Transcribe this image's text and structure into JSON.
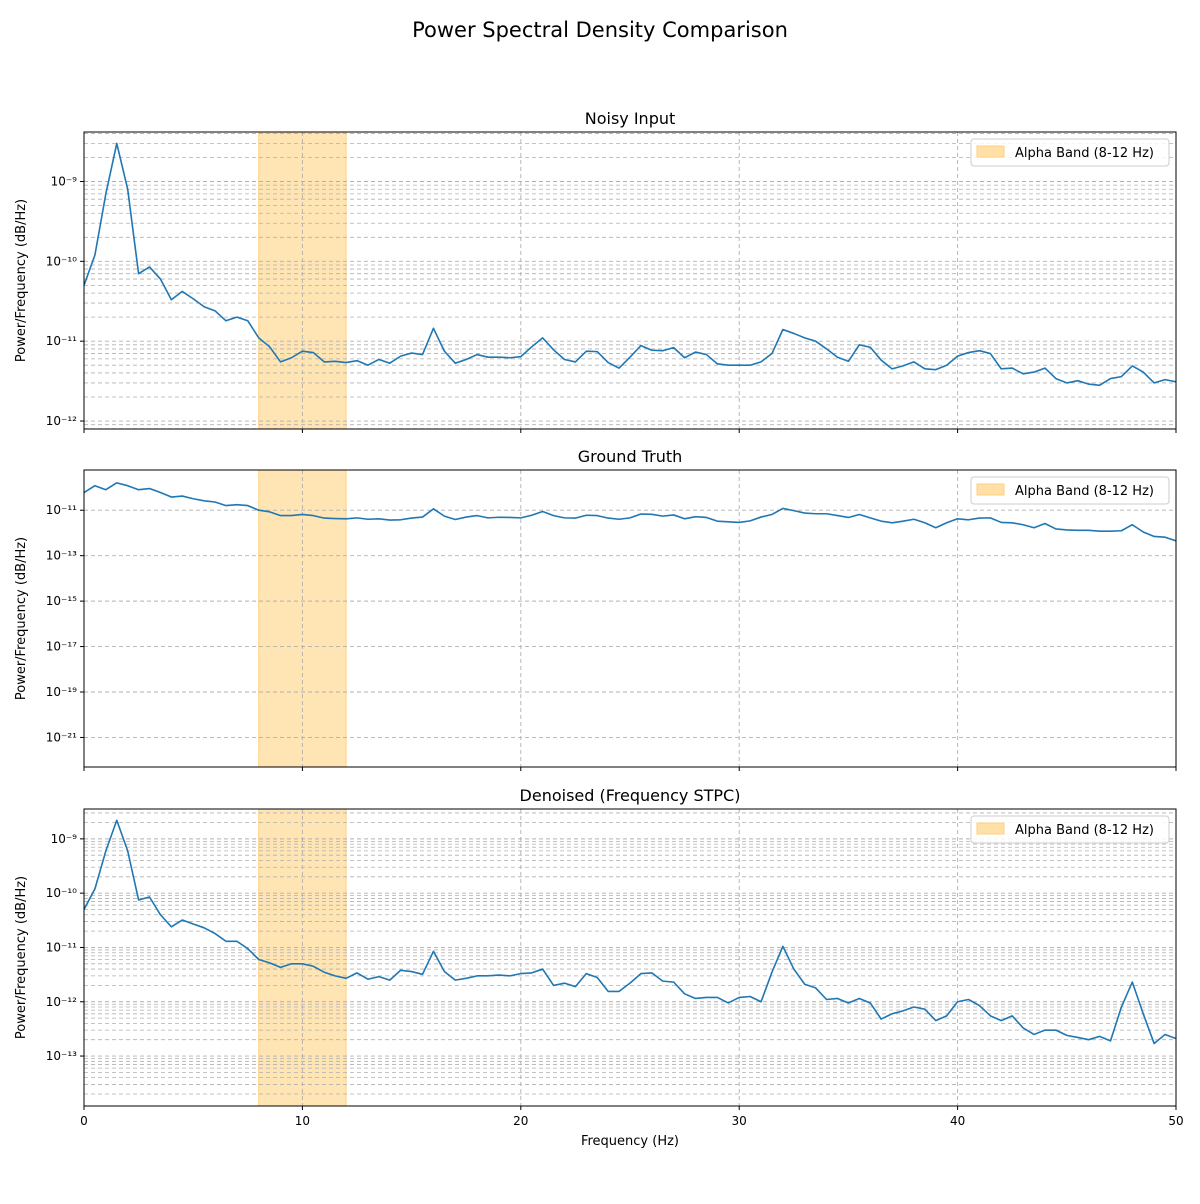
{
  "figure": {
    "suptitle": "Power Spectral Density Comparison"
  },
  "colors": {
    "line": "#1f77b4",
    "band_fill": "#ffe0a6",
    "band_edge": "#ffcf80",
    "grid": "#b0b0b0"
  },
  "chart_data": [
    {
      "type": "line",
      "title": "Noisy Input",
      "xlabel": "",
      "ylabel": "Power/Frequency (dB/Hz)",
      "xlim": [
        0,
        50
      ],
      "yscale": "log",
      "ylim_exp": [
        -12.1,
        -8.38
      ],
      "ytick_exps": [
        -12,
        -11,
        -10,
        -9
      ],
      "grid": true,
      "legend": {
        "label": "Alpha Band (8-12 Hz)",
        "position": "top-right"
      },
      "band": [
        8,
        12
      ],
      "x": [
        0,
        0.5,
        1,
        1.5,
        2,
        2.5,
        3,
        3.5,
        4,
        4.5,
        5,
        5.5,
        6,
        6.5,
        7,
        7.5,
        8,
        8.5,
        9,
        9.5,
        10,
        10.5,
        11,
        11.5,
        12,
        12.5,
        13,
        13.5,
        14,
        14.5,
        15,
        15.5,
        16,
        16.5,
        17,
        17.5,
        18,
        18.5,
        19,
        19.5,
        20,
        20.5,
        21,
        21.5,
        22,
        22.5,
        23,
        23.5,
        24,
        24.5,
        25,
        25.5,
        26,
        26.5,
        27,
        27.5,
        28,
        28.5,
        29,
        29.5,
        30,
        30.5,
        31,
        31.5,
        32,
        32.5,
        33,
        33.5,
        34,
        34.5,
        35,
        35.5,
        36,
        36.5,
        37,
        37.5,
        38,
        38.5,
        39,
        39.5,
        40,
        40.5,
        41,
        41.5,
        42,
        42.5,
        43,
        43.5,
        44,
        44.5,
        45,
        45.5,
        46,
        46.5,
        47,
        47.5,
        48,
        48.5,
        49,
        49.5,
        50
      ],
      "y": [
        5e-11,
        1.2e-10,
        7e-10,
        3e-09,
        8e-10,
        7e-11,
        8.5e-11,
        6e-11,
        3.3e-11,
        4.2e-11,
        3.4e-11,
        2.7e-11,
        2.4e-11,
        1.8e-11,
        2e-11,
        1.8e-11,
        1.1e-11,
        8.5e-12,
        5.5e-12,
        6.2e-12,
        7.5e-12,
        7.2e-12,
        5.5e-12,
        5.6e-12,
        5.4e-12,
        5.7e-12,
        5e-12,
        5.9e-12,
        5.3e-12,
        6.5e-12,
        7.1e-12,
        6.8e-12,
        1.45e-11,
        7.5e-12,
        5.3e-12,
        5.9e-12,
        6.8e-12,
        6.3e-12,
        6.3e-12,
        6.2e-12,
        6.4e-12,
        8.5e-12,
        1.1e-11,
        7.8e-12,
        5.9e-12,
        5.5e-12,
        7.5e-12,
        7.4e-12,
        5.4e-12,
        4.6e-12,
        6.3e-12,
        8.8e-12,
        7.7e-12,
        7.6e-12,
        8.3e-12,
        6.2e-12,
        7.3e-12,
        6.8e-12,
        5.2e-12,
        5e-12,
        5e-12,
        5e-12,
        5.5e-12,
        7e-12,
        1.4e-11,
        1.25e-11,
        1.1e-11,
        1e-11,
        8e-12,
        6.3e-12,
        5.6e-12,
        9e-12,
        8.4e-12,
        5.8e-12,
        4.5e-12,
        4.9e-12,
        5.5e-12,
        4.5e-12,
        4.4e-12,
        5e-12,
        6.5e-12,
        7.2e-12,
        7.6e-12,
        7e-12,
        4.5e-12,
        4.6e-12,
        3.9e-12,
        4.1e-12,
        4.6e-12,
        3.4e-12,
        3e-12,
        3.2e-12,
        2.9e-12,
        2.8e-12,
        3.4e-12,
        3.6e-12,
        4.9e-12,
        4.1e-12,
        3e-12,
        3.3e-12,
        3.1e-12
      ]
    },
    {
      "type": "line",
      "title": "Ground Truth",
      "xlabel": "",
      "ylabel": "Power/Frequency (dB/Hz)",
      "xlim": [
        0,
        50
      ],
      "yscale": "log",
      "ylim_exp": [
        -22.3,
        -9.23
      ],
      "ytick_exps": [
        -21,
        -19,
        -17,
        -15,
        -13,
        -11
      ],
      "grid": true,
      "legend": {
        "label": "Alpha Band (8-12 Hz)",
        "position": "top-right"
      },
      "band": [
        8,
        12
      ],
      "x": [
        0,
        0.5,
        1,
        1.5,
        2,
        2.5,
        3,
        3.5,
        4,
        4.5,
        5,
        5.5,
        6,
        6.5,
        7,
        7.5,
        8,
        8.5,
        9,
        9.5,
        10,
        10.5,
        11,
        11.5,
        12,
        12.5,
        13,
        13.5,
        14,
        14.5,
        15,
        15.5,
        16,
        16.5,
        17,
        17.5,
        18,
        18.5,
        19,
        19.5,
        20,
        20.5,
        21,
        21.5,
        22,
        22.5,
        23,
        23.5,
        24,
        24.5,
        25,
        25.5,
        26,
        26.5,
        27,
        27.5,
        28,
        28.5,
        29,
        29.5,
        30,
        30.5,
        31,
        31.5,
        32,
        32.5,
        33,
        33.5,
        34,
        34.5,
        35,
        35.5,
        36,
        36.5,
        37,
        37.5,
        38,
        38.5,
        39,
        39.5,
        40,
        40.5,
        41,
        41.5,
        42,
        42.5,
        43,
        43.5,
        44,
        44.5,
        45,
        45.5,
        46,
        46.5,
        47,
        47.5,
        48,
        48.5,
        49,
        49.5,
        50
      ],
      "y": [
        6e-11,
        1.2e-10,
        8e-11,
        1.6e-10,
        1.2e-10,
        8e-11,
        9e-11,
        6e-11,
        3.8e-11,
        4.2e-11,
        3.2e-11,
        2.6e-11,
        2.3e-11,
        1.6e-11,
        1.75e-11,
        1.6e-11,
        1e-11,
        8.5e-12,
        5.8e-12,
        5.8e-12,
        6.5e-12,
        5.8e-12,
        4.5e-12,
        4.3e-12,
        4.2e-12,
        4.6e-12,
        4e-12,
        4.2e-12,
        3.7e-12,
        3.8e-12,
        4.5e-12,
        5e-12,
        1.15e-11,
        5.5e-12,
        3.9e-12,
        5e-12,
        5.8e-12,
        4.6e-12,
        4.9e-12,
        4.8e-12,
        4.6e-12,
        6e-12,
        8.8e-12,
        5.8e-12,
        4.6e-12,
        4.5e-12,
        6e-12,
        5.8e-12,
        4.5e-12,
        4e-12,
        4.6e-12,
        6.8e-12,
        6.6e-12,
        5.5e-12,
        6.2e-12,
        4.2e-12,
        5.2e-12,
        4.8e-12,
        3.3e-12,
        3.1e-12,
        2.9e-12,
        3.4e-12,
        5e-12,
        6.5e-12,
        1.2e-11,
        9.6e-12,
        7.5e-12,
        7e-12,
        7e-12,
        5.8e-12,
        4.8e-12,
        6.5e-12,
        4.6e-12,
        3.3e-12,
        2.8e-12,
        3.3e-12,
        4e-12,
        2.8e-12,
        1.7e-12,
        2.8e-12,
        4.2e-12,
        3.8e-12,
        4.5e-12,
        4.6e-12,
        2.9e-12,
        2.8e-12,
        2.3e-12,
        1.7e-12,
        2.6e-12,
        1.5e-12,
        1.35e-12,
        1.3e-12,
        1.3e-12,
        1.2e-12,
        1.2e-12,
        1.25e-12,
        2.3e-12,
        1.1e-12,
        7e-13,
        6.5e-13,
        4.5e-13
      ]
    },
    {
      "type": "line",
      "title": "Denoised (Frequency STPC)",
      "xlabel": "Frequency (Hz)",
      "ylabel": "Power/Frequency (dB/Hz)",
      "xlim": [
        0,
        50
      ],
      "yscale": "log",
      "ylim_exp": [
        -13.92,
        -8.45
      ],
      "ytick_exps": [
        -13,
        -12,
        -11,
        -10,
        -9
      ],
      "xticks": [
        0,
        10,
        20,
        30,
        40,
        50
      ],
      "grid": true,
      "legend": {
        "label": "Alpha Band (8-12 Hz)",
        "position": "top-right"
      },
      "band": [
        8,
        12
      ],
      "x": [
        0,
        0.5,
        1,
        1.5,
        2,
        2.5,
        3,
        3.5,
        4,
        4.5,
        5,
        5.5,
        6,
        6.5,
        7,
        7.5,
        8,
        8.5,
        9,
        9.5,
        10,
        10.5,
        11,
        11.5,
        12,
        12.5,
        13,
        13.5,
        14,
        14.5,
        15,
        15.5,
        16,
        16.5,
        17,
        17.5,
        18,
        18.5,
        19,
        19.5,
        20,
        20.5,
        21,
        21.5,
        22,
        22.5,
        23,
        23.5,
        24,
        24.5,
        25,
        25.5,
        26,
        26.5,
        27,
        27.5,
        28,
        28.5,
        29,
        29.5,
        30,
        30.5,
        31,
        31.5,
        32,
        32.5,
        33,
        33.5,
        34,
        34.5,
        35,
        35.5,
        36,
        36.5,
        37,
        37.5,
        38,
        38.5,
        39,
        39.5,
        40,
        40.5,
        41,
        41.5,
        42,
        42.5,
        43,
        43.5,
        44,
        44.5,
        45,
        45.5,
        46,
        46.5,
        47,
        47.5,
        48,
        48.5,
        49,
        49.5,
        50
      ],
      "y": [
        5e-11,
        1.2e-10,
        6e-10,
        2.2e-09,
        6e-10,
        7.5e-11,
        8.5e-11,
        4e-11,
        2.4e-11,
        3.2e-11,
        2.7e-11,
        2.3e-11,
        1.8e-11,
        1.3e-11,
        1.3e-11,
        9.5e-12,
        6e-12,
        5.2e-12,
        4.3e-12,
        5e-12,
        5e-12,
        4.5e-12,
        3.5e-12,
        3e-12,
        2.7e-12,
        3.4e-12,
        2.6e-12,
        2.9e-12,
        2.5e-12,
        3.8e-12,
        3.6e-12,
        3.2e-12,
        8.5e-12,
        3.6e-12,
        2.5e-12,
        2.7e-12,
        3e-12,
        3e-12,
        3.1e-12,
        3e-12,
        3.3e-12,
        3.4e-12,
        4e-12,
        2e-12,
        2.2e-12,
        1.9e-12,
        3.3e-12,
        2.8e-12,
        1.55e-12,
        1.55e-12,
        2.2e-12,
        3.3e-12,
        3.4e-12,
        2.4e-12,
        2.3e-12,
        1.4e-12,
        1.15e-12,
        1.2e-12,
        1.2e-12,
        9.5e-13,
        1.2e-12,
        1.25e-12,
        1e-12,
        3.5e-12,
        1.05e-11,
        4e-12,
        2.1e-12,
        1.8e-12,
        1.1e-12,
        1.15e-12,
        9.5e-13,
        1.15e-12,
        9.5e-13,
        4.8e-13,
        6e-13,
        6.8e-13,
        8e-13,
        7.3e-13,
        4.5e-13,
        5.5e-13,
        1e-12,
        1.1e-12,
        8.5e-13,
        5.5e-13,
        4.5e-13,
        5.5e-13,
        3.3e-13,
        2.5e-13,
        3e-13,
        3e-13,
        2.4e-13,
        2.2e-13,
        2e-13,
        2.3e-13,
        1.9e-13,
        8e-13,
        2.3e-12,
        6e-13,
        1.7e-13,
        2.5e-13,
        2.1e-13
      ]
    }
  ]
}
